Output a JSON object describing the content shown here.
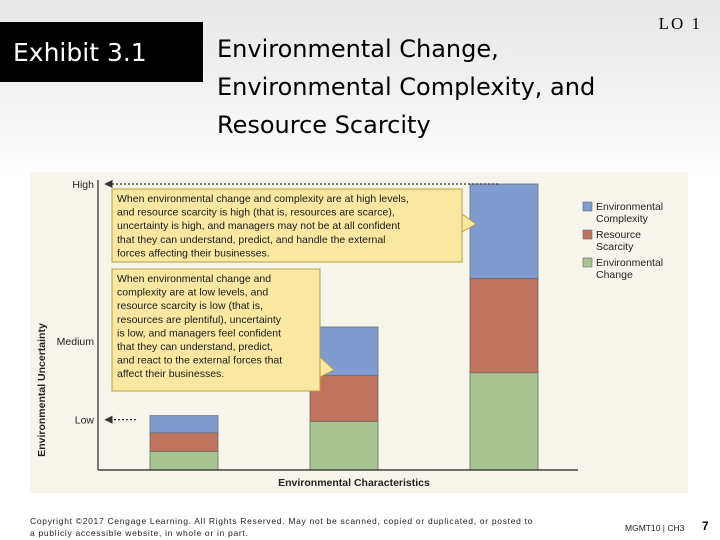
{
  "header": {
    "exhibit_label": "Exhibit 3.1",
    "lo_label": "LO 1",
    "title_lines": [
      "Environmental Change,",
      "Environmental Complexity, and",
      "Resource Scarcity"
    ]
  },
  "chart_data": {
    "type": "bar",
    "stacked": true,
    "xlabel": "Environmental Characteristics",
    "ylabel": "Environmental Uncertainty",
    "y_tick_labels": [
      "High",
      "Medium",
      "Low"
    ],
    "categories": [
      "",
      "",
      ""
    ],
    "ylim": [
      0,
      100
    ],
    "series": [
      {
        "name": "Environmental Change",
        "values": [
          6.5,
          17,
          34
        ],
        "color": "#a8c490"
      },
      {
        "name": "Resource Scarcity",
        "values": [
          6.5,
          16,
          33
        ],
        "color": "#c0735c"
      },
      {
        "name": "Environmental Complexity",
        "values": [
          6,
          17,
          33
        ],
        "color": "#7f9bcf"
      }
    ],
    "legend": {
      "position": "right",
      "entries": [
        {
          "label": "Environmental Complexity",
          "lines": [
            "Environmental",
            "Complexity"
          ],
          "color": "#7f9bcf"
        },
        {
          "label": "Resource Scarcity",
          "lines": [
            "Resource",
            "Scarcity"
          ],
          "color": "#c0735c"
        },
        {
          "label": "Environmental Change",
          "lines": [
            "Environmental",
            "Change"
          ],
          "color": "#a8c490"
        }
      ]
    },
    "annotations": [
      {
        "points_to": "High",
        "lines": [
          "When environmental change and complexity are at high levels,",
          "and resource scarcity is high (that is, resources are scarce),",
          "uncertainty is high, and managers may not be at all confident",
          "that they can understand, predict, and handle the external",
          "forces affecting their businesses."
        ]
      },
      {
        "points_to": "Low",
        "lines": [
          "When environmental change and",
          "complexity are at low levels, and",
          "resource scarcity is low (that is,",
          "resources are plentiful), uncertainty",
          "is low, and managers feel confident",
          "that they can understand, predict,",
          "and react to the external forces that",
          "affect their businesses."
        ]
      }
    ],
    "colors": {
      "background": "#f7f4ec",
      "callout_fill": "#fae8a2",
      "callout_border": "#b79f44",
      "axis": "#444444"
    }
  },
  "footer": {
    "copyright_lines": [
      "Copyright ©2017 Cengage Learning. All Rights Reserved. May not be scanned, copied or duplicated, or posted to",
      "a publicly accessible website, in whole or in part."
    ],
    "course_code": "MGMT10 | CH3",
    "page_number": "7"
  }
}
